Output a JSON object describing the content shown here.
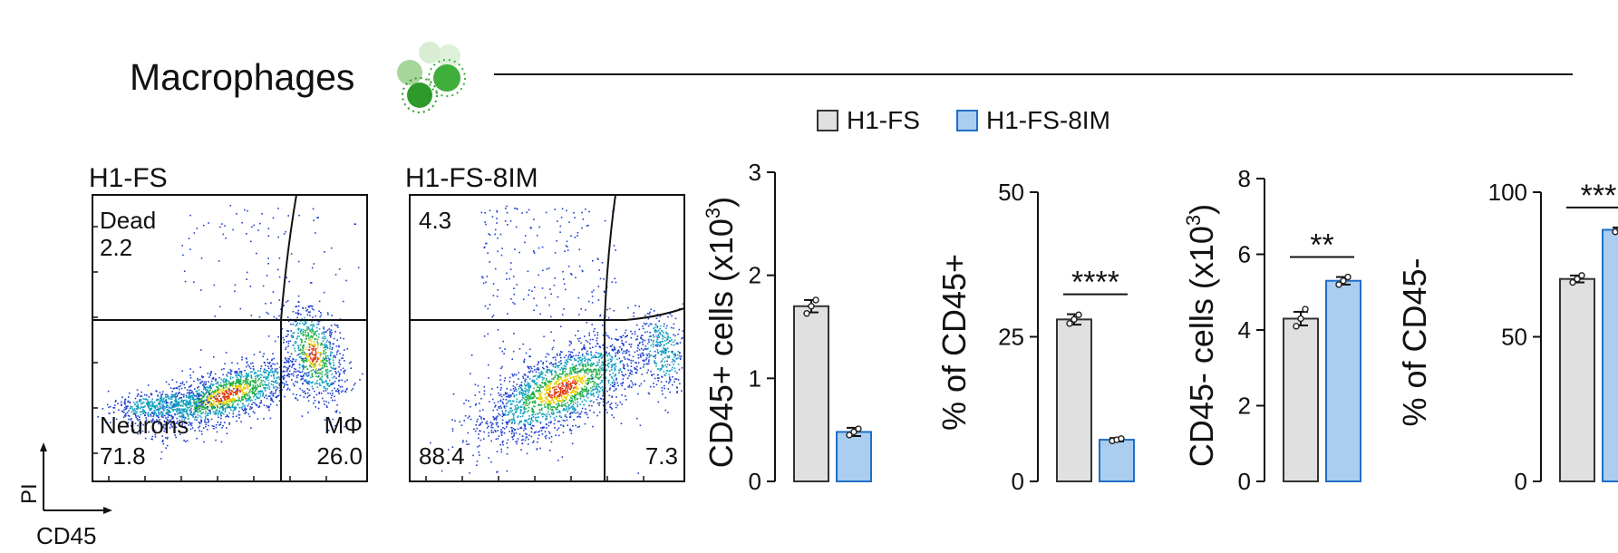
{
  "header": {
    "title": "Macrophages",
    "icon": "macrophage-cells-icon"
  },
  "legend": {
    "placement": "top-center",
    "items": [
      {
        "label": "H1-FS",
        "color": "#e0e0e0"
      },
      {
        "label": "H1-FS-8IM",
        "color": "#aacdf0"
      }
    ]
  },
  "flow": {
    "axes": {
      "y": "PI",
      "x": "CD45"
    },
    "panels": [
      {
        "title": "H1-FS",
        "gates": {
          "dead_label": "Dead",
          "dead_value": "2.2",
          "neurons_label": "Neurons",
          "neurons_value": "71.8",
          "mphi_label": "MΦ",
          "mphi_value": "26.0"
        }
      },
      {
        "title": "H1-FS-8IM",
        "gates": {
          "dead_label": "",
          "dead_value": "4.3",
          "neurons_label": "",
          "neurons_value": "88.4",
          "mphi_label": "",
          "mphi_value": "7.3"
        }
      }
    ]
  },
  "chart_data": [
    {
      "type": "bar",
      "categories": [
        "H1-FS",
        "H1-FS-8IM"
      ],
      "values": [
        1.7,
        0.48
      ],
      "errors": [
        0.06,
        0.04
      ],
      "ylabel_main": "CD45+ cells (x10",
      "ylabel_sup": "3",
      "ylabel_end": ")",
      "ylim": [
        0,
        3
      ],
      "yticks": [
        "0",
        "1",
        "2",
        "3"
      ],
      "significance": "",
      "points": [
        [
          1.63,
          1.7,
          1.76
        ],
        [
          0.45,
          0.48,
          0.51
        ]
      ]
    },
    {
      "type": "bar",
      "categories": [
        "H1-FS",
        "H1-FS-8IM"
      ],
      "values": [
        28,
        7.2
      ],
      "errors": [
        0.9,
        0.3
      ],
      "ylabel_main": "% of CD45+",
      "ylabel_sup": "",
      "ylabel_end": "",
      "ylim": [
        0,
        50
      ],
      "yticks": [
        "0",
        "25",
        "50"
      ],
      "significance": "****",
      "points": [
        [
          27.3,
          28,
          28.8
        ],
        [
          7.0,
          7.2,
          7.4
        ]
      ]
    },
    {
      "type": "bar",
      "categories": [
        "H1-FS",
        "H1-FS-8IM"
      ],
      "values": [
        4.3,
        5.3
      ],
      "errors": [
        0.18,
        0.1
      ],
      "ylabel_main": "CD45- cells (x10",
      "ylabel_sup": "3",
      "ylabel_end": ")",
      "ylim": [
        0,
        8
      ],
      "yticks": [
        "0",
        "2",
        "4",
        "6",
        "8"
      ],
      "significance": "**",
      "points": [
        [
          4.1,
          4.3,
          4.55
        ],
        [
          5.2,
          5.3,
          5.4
        ]
      ]
    },
    {
      "type": "bar",
      "categories": [
        "H1-FS",
        "H1-FS-8IM"
      ],
      "values": [
        70,
        87
      ],
      "errors": [
        1.2,
        0.8
      ],
      "ylabel_main": "% of CD45-",
      "ylabel_sup": "",
      "ylabel_end": "",
      "ylim": [
        0,
        100
      ],
      "yticks": [
        "0",
        "50",
        "100"
      ],
      "significance": "***",
      "points": [
        [
          68.8,
          70,
          71.2
        ],
        [
          86.3,
          87,
          87.8
        ]
      ]
    }
  ]
}
